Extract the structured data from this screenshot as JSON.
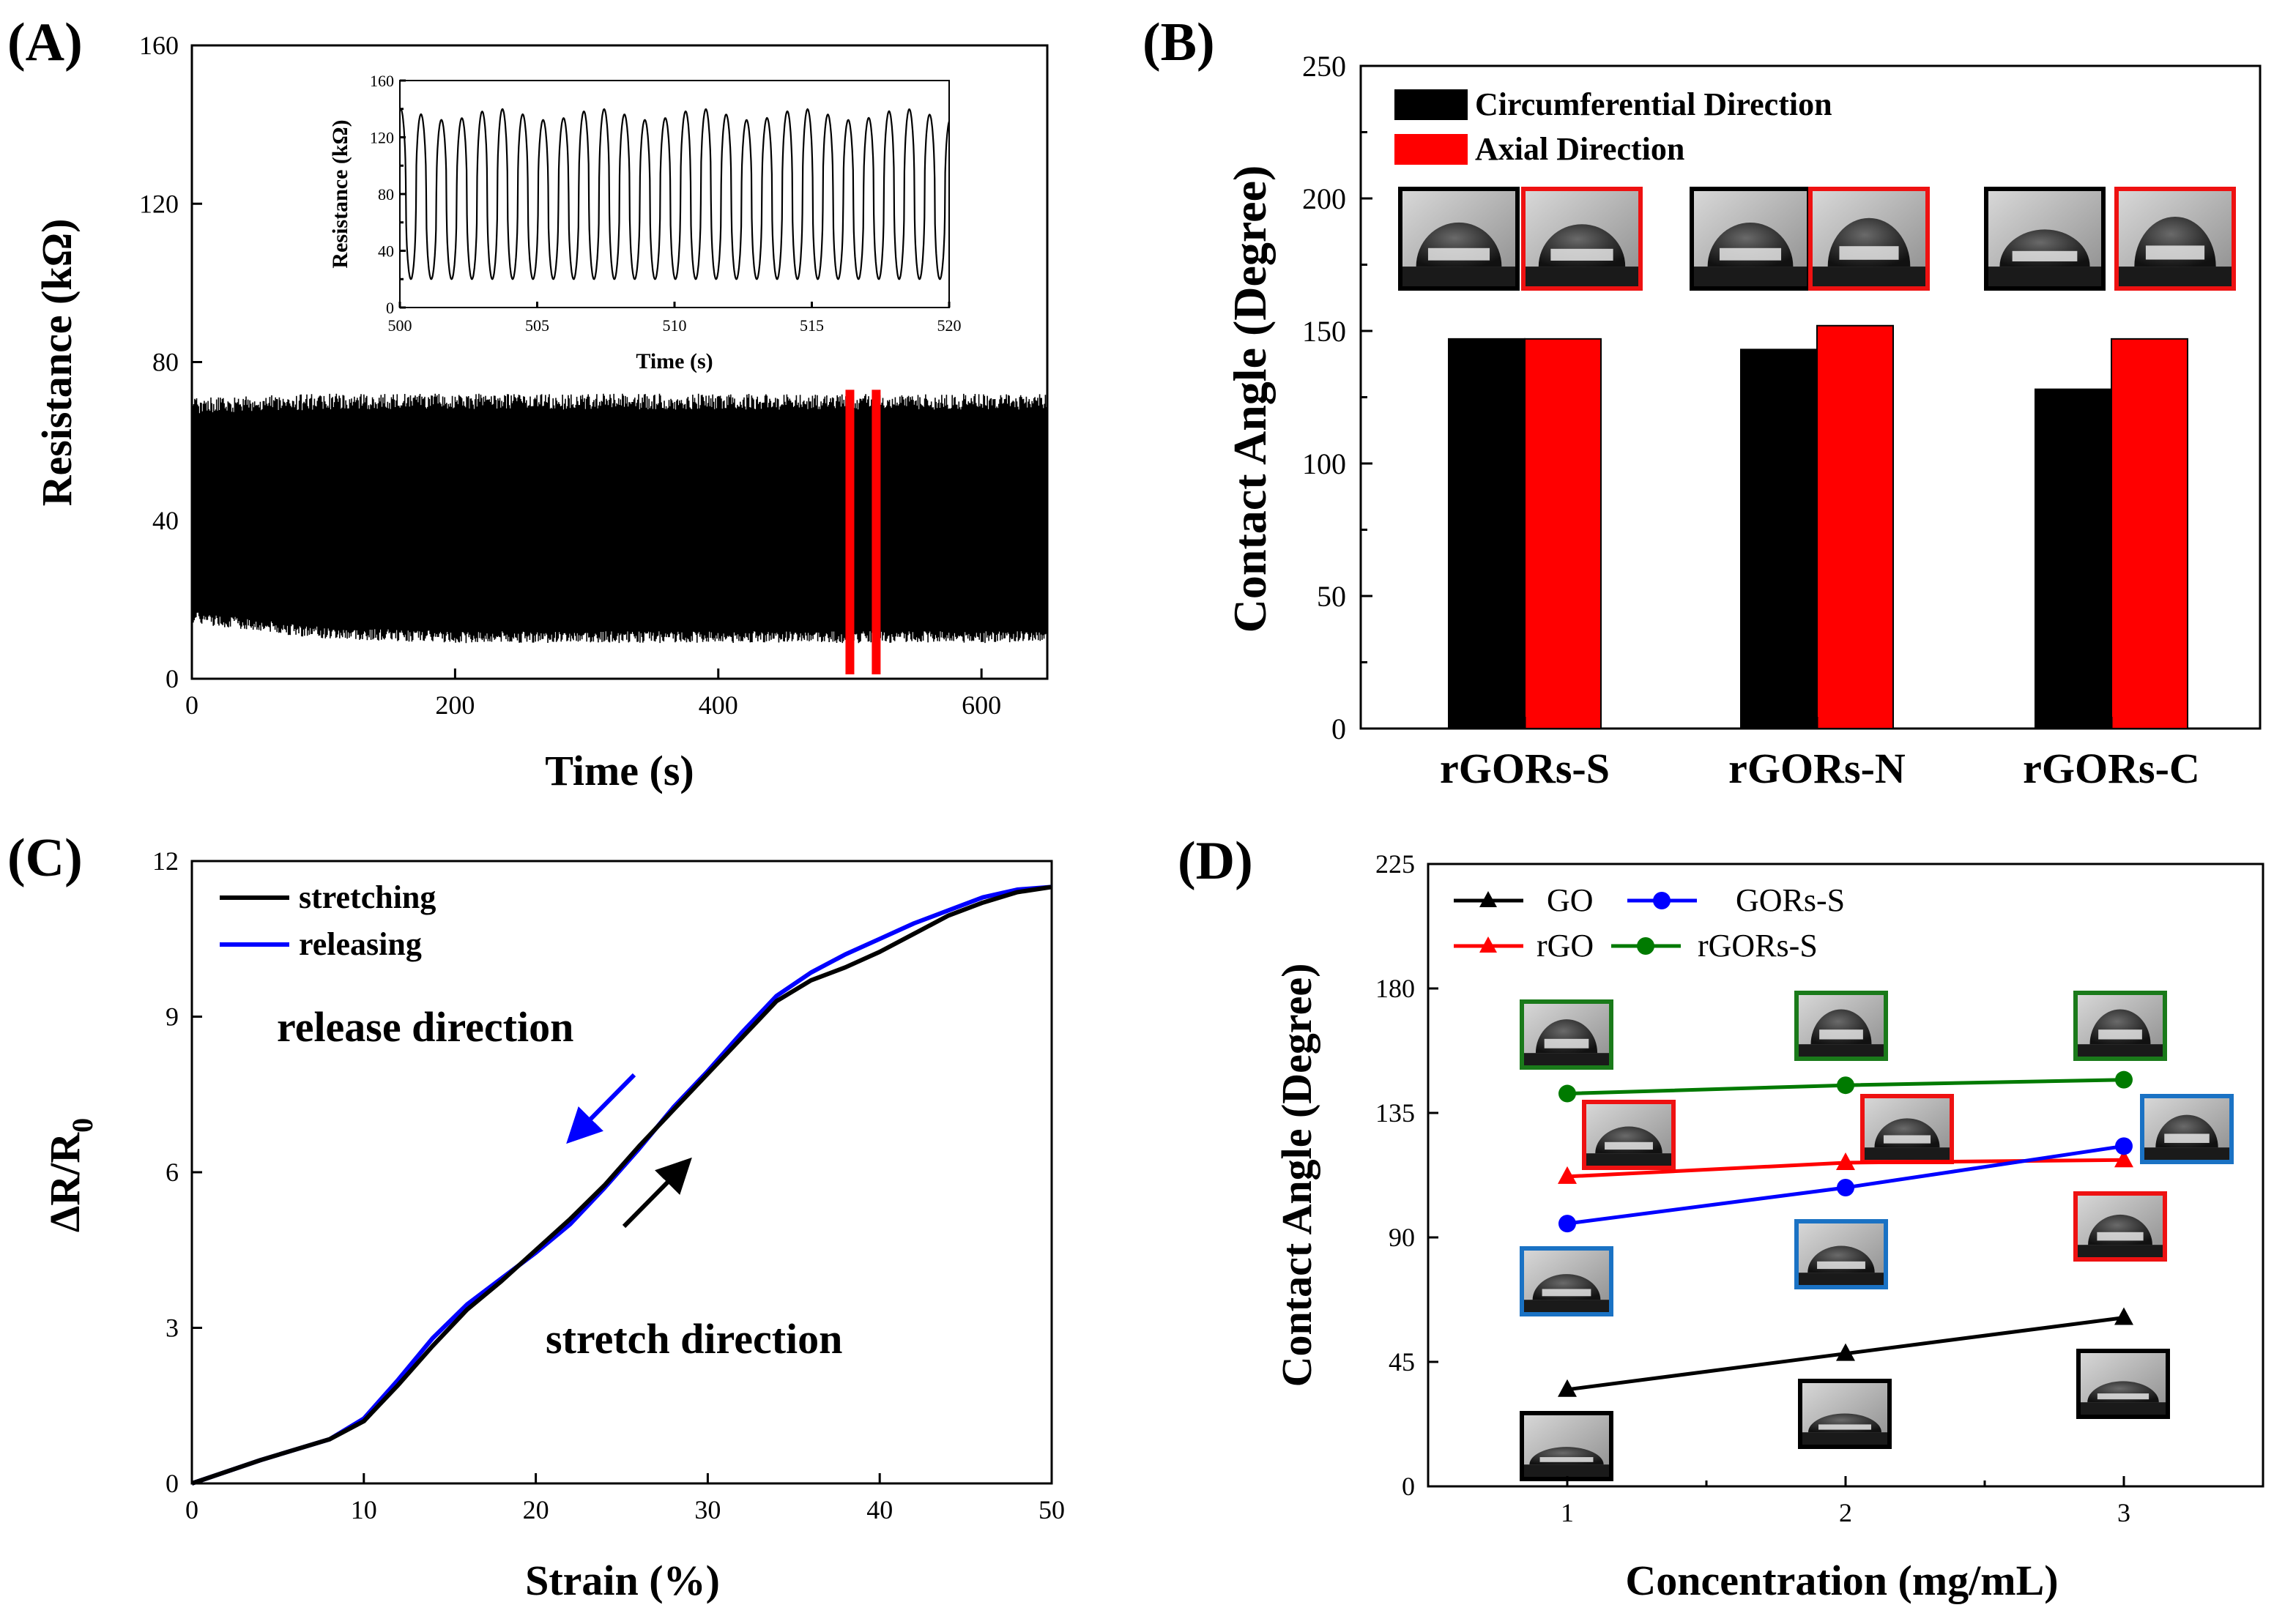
{
  "colors": {
    "black": "#000000",
    "red": "#ff0000",
    "blue": "#0000ff",
    "green": "#007a00",
    "photo_frame_black": "#000000",
    "photo_frame_red": "#ee1111",
    "photo_frame_blue": "#1a72c4",
    "photo_frame_green": "#1a7a1a"
  },
  "chart_data": [
    {
      "id": "A",
      "panel_label": "(A)",
      "type": "line",
      "xlabel": "Time (s)",
      "ylabel": "Resistance (kΩ)",
      "xlim": [
        0,
        650
      ],
      "ylim": [
        0,
        160
      ],
      "xticks": [
        0,
        200,
        400,
        600
      ],
      "yticks": [
        0,
        40,
        80,
        120,
        160
      ],
      "series": [
        {
          "name": "resistance",
          "description_values": {
            "min_envelope": [
              14,
              10,
              9,
              9,
              9,
              9,
              9
            ],
            "max_envelope": [
              71,
              72,
              72,
              72,
              72,
              72,
              72
            ],
            "x": [
              0,
              100,
              200,
              300,
              400,
              500,
              650
            ]
          }
        }
      ],
      "highlight_window": [
        500,
        520
      ],
      "inset": {
        "xlabel": "Time (s)",
        "ylabel": "Resistance (kΩ)",
        "xlim": [
          500,
          520
        ],
        "ylim": [
          0,
          160
        ],
        "xticks": [
          500,
          505,
          510,
          515,
          520
        ],
        "yticks": [
          0,
          20,
          40,
          60,
          80,
          100,
          120,
          140,
          160
        ],
        "cycles": 27,
        "peak": 142,
        "trough": 20
      }
    },
    {
      "id": "B",
      "panel_label": "(B)",
      "type": "bar",
      "ylabel": "Contact Angle (Degree)",
      "ylim": [
        0,
        250
      ],
      "yticks": [
        0,
        50,
        100,
        150,
        200,
        250
      ],
      "categories": [
        "rGORs-S",
        "rGORs-N",
        "rGORs-C"
      ],
      "series": [
        {
          "name": "Circumferential Direction",
          "color": "#000000",
          "values": [
            147,
            143,
            128
          ]
        },
        {
          "name": "Axial Direction",
          "color": "#ff0000",
          "values": [
            147,
            152,
            147
          ]
        }
      ]
    },
    {
      "id": "C",
      "panel_label": "(C)",
      "type": "line",
      "xlabel": "Strain (%)",
      "ylabel": "ΔR/R",
      "ylabel_sub": "0",
      "xlim": [
        0,
        50
      ],
      "ylim": [
        0,
        12
      ],
      "xticks": [
        0,
        10,
        20,
        30,
        40,
        50
      ],
      "yticks": [
        0,
        3,
        6,
        9,
        12
      ],
      "series": [
        {
          "name": "stretching",
          "color": "#000000",
          "x": [
            0,
            4,
            8,
            10,
            12,
            14,
            16,
            18,
            20,
            22,
            24,
            26,
            28,
            30,
            32,
            34,
            36,
            38,
            40,
            42,
            44,
            46,
            48,
            50
          ],
          "y": [
            0,
            0.45,
            0.85,
            1.2,
            1.9,
            2.65,
            3.35,
            3.9,
            4.5,
            5.1,
            5.75,
            6.5,
            7.2,
            7.9,
            8.6,
            9.3,
            9.7,
            9.95,
            10.25,
            10.6,
            10.95,
            11.2,
            11.4,
            11.5
          ]
        },
        {
          "name": "releasing",
          "color": "#0000ff",
          "x": [
            0,
            4,
            8,
            10,
            12,
            14,
            16,
            18,
            20,
            22,
            24,
            26,
            28,
            30,
            32,
            34,
            36,
            38,
            40,
            42,
            44,
            46,
            48,
            50
          ],
          "y": [
            0,
            0.45,
            0.85,
            1.25,
            2.0,
            2.8,
            3.45,
            3.95,
            4.45,
            5.0,
            5.7,
            6.45,
            7.25,
            7.95,
            8.7,
            9.4,
            9.85,
            10.2,
            10.5,
            10.8,
            11.05,
            11.3,
            11.45,
            11.5
          ]
        }
      ],
      "annotations": {
        "release": "release direction",
        "stretch": "stretch direction"
      }
    },
    {
      "id": "D",
      "panel_label": "(D)",
      "type": "line",
      "xlabel": "Concentration (mg/mL)",
      "ylabel": "Contact Angle (Degree)",
      "xlim": [
        0.5,
        3.5
      ],
      "ylim": [
        0,
        225
      ],
      "xticks": [
        1,
        2,
        3
      ],
      "yticks": [
        0,
        45,
        90,
        135,
        180,
        225
      ],
      "series": [
        {
          "name": "GO",
          "color": "#000000",
          "marker": "triangle",
          "x": [
            1,
            2,
            3
          ],
          "y": [
            35,
            48,
            61
          ]
        },
        {
          "name": "rGO",
          "color": "#ff0000",
          "marker": "triangle",
          "x": [
            1,
            2,
            3
          ],
          "y": [
            112,
            117,
            118
          ]
        },
        {
          "name": "GORs-S",
          "color": "#0000ff",
          "marker": "circle",
          "x": [
            1,
            2,
            3
          ],
          "y": [
            95,
            108,
            123
          ]
        },
        {
          "name": "rGORs-S",
          "color": "#007a00",
          "marker": "circle",
          "x": [
            1,
            2,
            3
          ],
          "y": [
            142,
            145,
            147
          ]
        }
      ]
    }
  ]
}
